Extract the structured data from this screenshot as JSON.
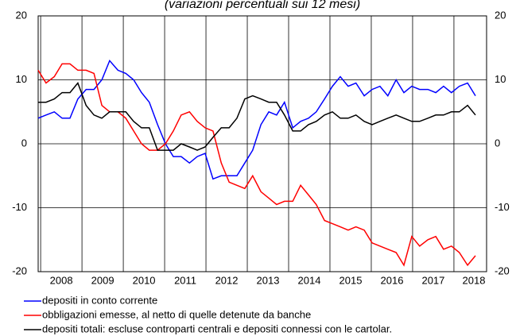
{
  "chart_data": {
    "type": "line",
    "title": "(variazioni percentuali sui 12 mesi)",
    "x": [
      2007.94,
      2008.13,
      2008.33,
      2008.52,
      2008.71,
      2008.9,
      2009.1,
      2009.29,
      2009.48,
      2009.67,
      2009.87,
      2010.06,
      2010.25,
      2010.44,
      2010.63,
      2010.83,
      2011.02,
      2011.21,
      2011.4,
      2011.6,
      2011.79,
      2011.98,
      2012.17,
      2012.37,
      2012.56,
      2012.75,
      2012.94,
      2013.13,
      2013.33,
      2013.52,
      2013.71,
      2013.9,
      2014.1,
      2014.29,
      2014.48,
      2014.67,
      2014.87,
      2015.06,
      2015.25,
      2015.44,
      2015.63,
      2015.83,
      2016.02,
      2016.21,
      2016.4,
      2016.6,
      2016.79,
      2016.98,
      2017.17,
      2017.37,
      2017.56,
      2017.75,
      2017.94,
      2018.13,
      2018.33,
      2018.52
    ],
    "series": [
      {
        "name": "depositi in conto corrente",
        "color": "#0000ff",
        "values": [
          4,
          4.5,
          5,
          4,
          4,
          7,
          8.5,
          8.5,
          10,
          13,
          11.5,
          11,
          10,
          8,
          6.5,
          3,
          0,
          -2,
          -2,
          -3,
          -2,
          -1.5,
          -5.5,
          -5,
          -5,
          -5,
          -3,
          -1,
          3,
          5,
          4.5,
          6.5,
          2.5,
          3.5,
          4,
          5,
          7,
          9,
          10.5,
          9,
          9.5,
          7.5,
          8.5,
          9,
          7.5,
          10,
          8,
          9,
          8.5,
          8.5,
          8,
          9,
          8,
          9,
          9.5,
          7.5
        ]
      },
      {
        "name": "obbligazioni emesse, al netto di quelle detenute da banche",
        "color": "#ff0000",
        "values": [
          11.5,
          9.5,
          10.5,
          12.5,
          12.5,
          11.5,
          11.5,
          11,
          6,
          5,
          5,
          4,
          2,
          0,
          -1,
          -1,
          0,
          2,
          4.5,
          5,
          3.5,
          2.5,
          2,
          -3,
          -6,
          -6.5,
          -7,
          -5,
          -7.5,
          -8.5,
          -9.5,
          -9,
          -9,
          -6.5,
          -8,
          -9.5,
          -12,
          -12.5,
          -13,
          -13.5,
          -13,
          -13.5,
          -15.5,
          -16,
          -16.5,
          -17,
          -19,
          -14.5,
          -16,
          -15,
          -14.5,
          -16.5,
          -16,
          -17,
          -19,
          -17.5
        ]
      },
      {
        "name": "depositi totali: escluse controparti centrali e depositi connessi con le cartolar.",
        "color": "#000000",
        "values": [
          6.5,
          6.5,
          7,
          8,
          8,
          9.5,
          6,
          4.5,
          4,
          5,
          5,
          5,
          3.5,
          2.5,
          2.5,
          -1,
          -1,
          -1,
          0,
          -0.5,
          -1,
          -0.5,
          1,
          2.5,
          2.5,
          4,
          7,
          7.5,
          7,
          6.5,
          6.5,
          4.5,
          2,
          2,
          3,
          3.5,
          4.5,
          5,
          4,
          4,
          4.5,
          3.5,
          3,
          3.5,
          4,
          4.5,
          4,
          3.5,
          3.5,
          4,
          4.5,
          4.5,
          5,
          5,
          6,
          4.5
        ]
      }
    ],
    "xlim": [
      2007.94,
      2018.79
    ],
    "xticks": [
      {
        "value": 2008,
        "label": "2008"
      },
      {
        "value": 2009,
        "label": "2009"
      },
      {
        "value": 2010,
        "label": "2010"
      },
      {
        "value": 2011,
        "label": "2011"
      },
      {
        "value": 2012,
        "label": "2012"
      },
      {
        "value": 2013,
        "label": "2013"
      },
      {
        "value": 2014,
        "label": "2014"
      },
      {
        "value": 2015,
        "label": "2015"
      },
      {
        "value": 2016,
        "label": "2016"
      },
      {
        "value": 2017,
        "label": "2017"
      },
      {
        "value": 2018,
        "label": "2018"
      }
    ],
    "ylim": [
      -20,
      20
    ],
    "yticks": [
      -20,
      -10,
      0,
      10,
      20
    ],
    "grid": true,
    "legend": "bottom"
  }
}
